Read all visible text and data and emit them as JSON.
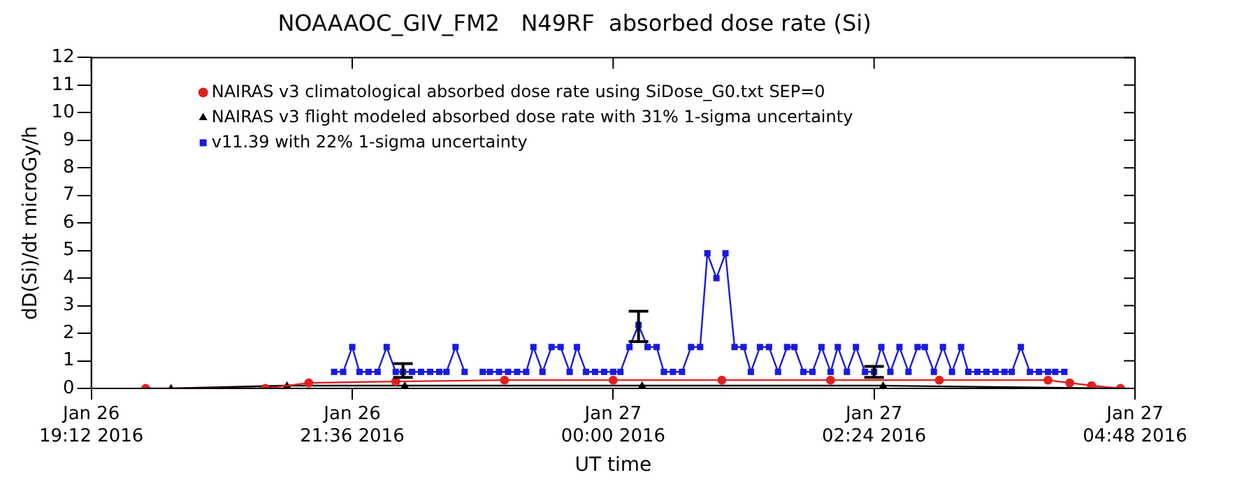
{
  "chart_data": {
    "type": "line",
    "title": "NOAAAOC_GIV_FM2   N49RF  absorbed dose rate (Si)",
    "xlabel": "UT time",
    "ylabel": "dD(Si)/dt microGy/h",
    "xlim": [
      "2016-01-26T19:12",
      "2016-01-27T04:48"
    ],
    "xticks": [
      {
        "value": "2016-01-26T19:12",
        "label": "Jan 26\n19:12 2016"
      },
      {
        "value": "2016-01-26T21:36",
        "label": "Jan 26\n21:36 2016"
      },
      {
        "value": "2016-01-27T00:00",
        "label": "Jan 27\n00:00 2016"
      },
      {
        "value": "2016-01-27T02:24",
        "label": "Jan 27\n02:24 2016"
      },
      {
        "value": "2016-01-27T04:48",
        "label": "Jan 27\n04:48 2016"
      }
    ],
    "ylim": [
      0,
      12
    ],
    "yticks": [
      0,
      1,
      2,
      3,
      4,
      5,
      6,
      7,
      8,
      9,
      10,
      11,
      12
    ],
    "grid": false,
    "legend": "top left",
    "series": [
      {
        "name": "NAIRAS v3 climatological absorbed dose rate using SiDose_G0.txt SEP=0",
        "color": "#e02020",
        "marker": "circle",
        "x": [
          "2016-01-26T19:42",
          "2016-01-26T20:48",
          "2016-01-26T21:12",
          "2016-01-26T22:00",
          "2016-01-26T23:00",
          "2016-01-27T00:00",
          "2016-01-27T01:00",
          "2016-01-27T02:00",
          "2016-01-27T03:00",
          "2016-01-27T04:00",
          "2016-01-27T04:12",
          "2016-01-27T04:24",
          "2016-01-27T04:40"
        ],
        "values": [
          0,
          0,
          0.2,
          0.25,
          0.3,
          0.3,
          0.3,
          0.3,
          0.3,
          0.3,
          0.2,
          0.1,
          0
        ]
      },
      {
        "name": "NAIRAS v3 flight modeled absorbed dose rate with 31% 1-sigma uncertainty",
        "color": "#000000",
        "marker": "triangle",
        "x": [
          "2016-01-26T19:56",
          "2016-01-26T21:00",
          "2016-01-26T22:05",
          "2016-01-27T00:16",
          "2016-01-27T02:29",
          "2016-01-27T04:40"
        ],
        "values": [
          0,
          0.1,
          0.1,
          0.1,
          0.1,
          0
        ]
      },
      {
        "name": "v11.39 with 22% 1-sigma uncertainty",
        "color": "#1a1ae0",
        "marker": "square",
        "x": [
          "2016-01-26T21:26",
          "2016-01-26T21:31",
          "2016-01-26T21:36",
          "2016-01-26T21:40",
          "2016-01-26T21:45",
          "2016-01-26T21:50",
          "2016-01-26T21:55",
          "2016-01-26T22:00",
          "2016-01-26T22:04",
          "2016-01-26T22:09",
          "2016-01-26T22:14",
          "2016-01-26T22:19",
          "2016-01-26T22:24",
          "2016-01-26T22:28",
          "2016-01-26T22:33",
          "2016-01-26T22:38",
          "2016-01-26T22:43",
          "2016-01-26T22:48",
          "2016-01-26T22:52",
          "2016-01-26T22:57",
          "2016-01-26T23:02",
          "2016-01-26T23:07",
          "2016-01-26T23:12",
          "2016-01-26T23:16",
          "2016-01-26T23:21",
          "2016-01-26T23:26",
          "2016-01-26T23:31",
          "2016-01-26T23:36",
          "2016-01-26T23:40",
          "2016-01-26T23:45",
          "2016-01-26T23:50",
          "2016-01-26T23:55",
          "2016-01-27T00:00",
          "2016-01-27T00:04",
          "2016-01-27T00:09",
          "2016-01-27T00:14",
          "2016-01-27T00:19",
          "2016-01-27T00:24",
          "2016-01-27T00:28",
          "2016-01-27T00:33",
          "2016-01-27T00:38",
          "2016-01-27T00:43",
          "2016-01-27T00:48",
          "2016-01-27T00:52",
          "2016-01-27T00:57",
          "2016-01-27T01:02",
          "2016-01-27T01:07",
          "2016-01-27T01:12",
          "2016-01-27T01:16",
          "2016-01-27T01:21",
          "2016-01-27T01:26",
          "2016-01-27T01:31",
          "2016-01-27T01:36",
          "2016-01-27T01:40",
          "2016-01-27T01:45",
          "2016-01-27T01:50",
          "2016-01-27T01:55",
          "2016-01-27T02:00",
          "2016-01-27T02:04",
          "2016-01-27T02:09",
          "2016-01-27T02:14",
          "2016-01-27T02:19",
          "2016-01-27T02:24",
          "2016-01-27T02:28",
          "2016-01-27T02:33",
          "2016-01-27T02:38",
          "2016-01-27T02:43",
          "2016-01-27T02:48",
          "2016-01-27T02:52",
          "2016-01-27T02:57",
          "2016-01-27T03:02",
          "2016-01-27T03:07",
          "2016-01-27T03:12",
          "2016-01-27T03:16",
          "2016-01-27T03:21",
          "2016-01-27T03:26",
          "2016-01-27T03:31",
          "2016-01-27T03:36",
          "2016-01-27T03:40",
          "2016-01-27T03:45",
          "2016-01-27T03:50",
          "2016-01-27T03:55",
          "2016-01-27T04:00",
          "2016-01-27T04:04",
          "2016-01-27T04:09"
        ],
        "values": [
          0.6,
          0.6,
          1.5,
          0.6,
          0.6,
          0.6,
          1.5,
          0.6,
          0.6,
          0.6,
          0.6,
          0.6,
          0.6,
          0.6,
          1.5,
          0.6,
          null,
          0.6,
          0.6,
          0.6,
          0.6,
          0.6,
          0.6,
          1.5,
          0.6,
          1.5,
          1.5,
          0.6,
          1.5,
          0.6,
          0.6,
          0.6,
          0.6,
          0.6,
          1.5,
          2.3,
          1.5,
          1.5,
          0.6,
          0.6,
          0.6,
          1.5,
          1.5,
          4.9,
          4.0,
          4.9,
          1.5,
          1.5,
          0.6,
          1.5,
          1.5,
          0.6,
          1.5,
          1.5,
          0.6,
          0.6,
          1.5,
          0.6,
          1.5,
          0.6,
          1.5,
          0.6,
          0.6,
          1.5,
          0.6,
          1.5,
          0.6,
          1.5,
          1.5,
          0.6,
          1.5,
          0.6,
          1.5,
          0.6,
          0.6,
          0.6,
          0.6,
          0.6,
          0.6,
          1.5,
          0.6,
          0.6,
          0.6,
          0.6,
          0.6
        ],
        "errors": [
          null,
          null,
          null,
          null,
          null,
          null,
          null,
          null,
          [
            0.4,
            0.9
          ],
          null,
          null,
          null,
          null,
          null,
          null,
          null,
          null,
          null,
          null,
          null,
          null,
          null,
          null,
          null,
          null,
          null,
          null,
          null,
          null,
          null,
          null,
          null,
          null,
          null,
          null,
          [
            1.7,
            2.8
          ],
          null,
          null,
          null,
          null,
          null,
          null,
          null,
          null,
          null,
          null,
          null,
          null,
          null,
          null,
          null,
          null,
          null,
          null,
          null,
          null,
          null,
          null,
          null,
          null,
          null,
          null,
          [
            0.4,
            0.8
          ],
          null,
          null,
          null,
          null,
          null,
          null,
          null,
          null,
          null,
          null,
          null,
          null,
          null,
          null,
          null,
          null,
          null,
          null,
          null,
          null,
          null,
          null
        ]
      }
    ]
  }
}
